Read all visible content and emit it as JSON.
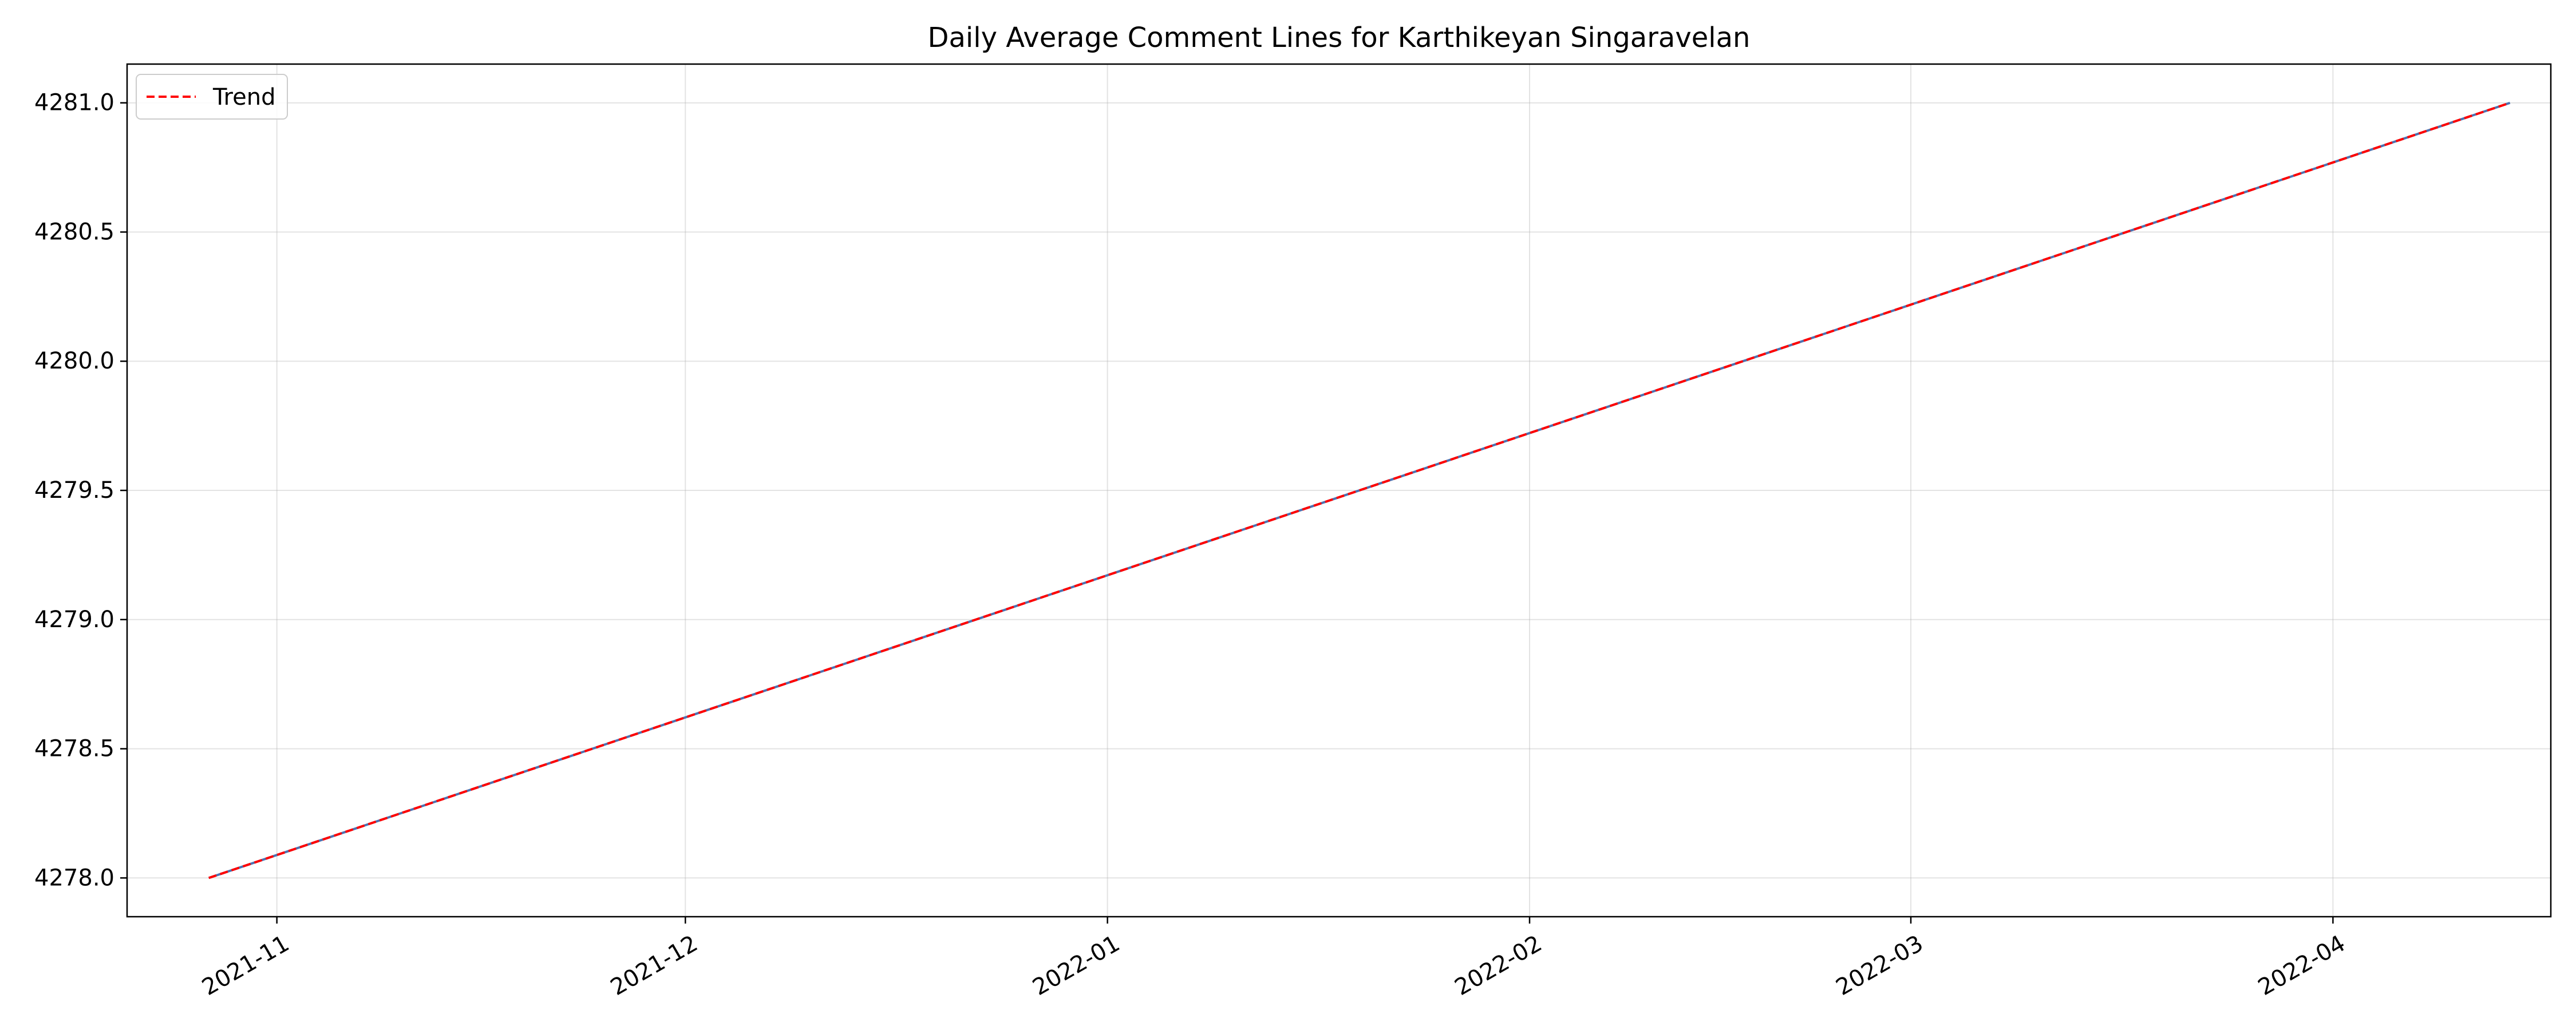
{
  "chart_data": {
    "type": "line",
    "title": "Daily Average Comment Lines for Karthikeyan Singaravelan",
    "xlabel": "",
    "ylabel": "",
    "x_type": "date",
    "xlim": [
      "2021-10-21",
      "2022-04-17"
    ],
    "ylim": [
      4277.85,
      4281.15
    ],
    "x_ticks": [
      "2021-11",
      "2021-12",
      "2022-01",
      "2022-02",
      "2022-03",
      "2022-04"
    ],
    "x_tick_dates": [
      "2021-11-01",
      "2021-12-01",
      "2022-01-01",
      "2022-02-01",
      "2022-03-01",
      "2022-04-01"
    ],
    "y_ticks": [
      "4278.0",
      "4278.5",
      "4279.0",
      "4279.5",
      "4280.0",
      "4280.5",
      "4281.0"
    ],
    "y_tick_values": [
      4278.0,
      4278.5,
      4279.0,
      4279.5,
      4280.0,
      4280.5,
      4281.0
    ],
    "grid": true,
    "legend_position": "top-left",
    "series": [
      {
        "name": "Trend",
        "style": "dashed",
        "color": "#ff0000",
        "x": [
          "2021-10-27",
          "2022-04-14"
        ],
        "y": [
          4278.0,
          4281.0
        ]
      }
    ],
    "underlying_line_color": "#4c72b0"
  }
}
